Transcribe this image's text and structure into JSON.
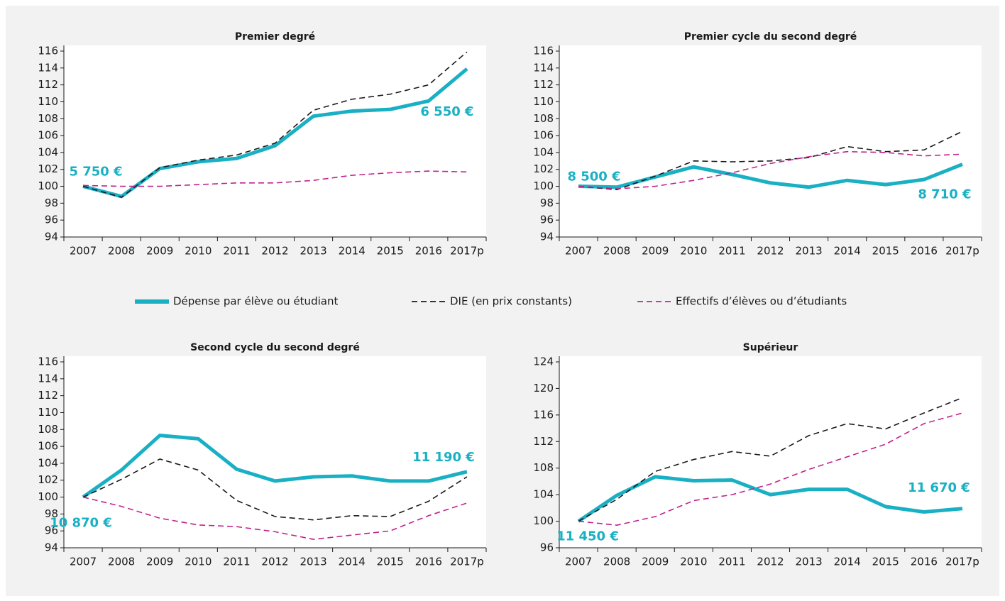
{
  "legend": [
    {
      "name": "Dépense par élève ou étudiant",
      "color": "#1ab0c4",
      "style": "solid"
    },
    {
      "name": "DIE (en prix constants)",
      "color": "#1a1a1a",
      "style": "dashed"
    },
    {
      "name": "Effectifs d’élèves ou d’étudiants",
      "color": "#c0228c",
      "style": "dashed"
    }
  ],
  "chart_data": [
    {
      "type": "line",
      "title": "Premier degré",
      "categories": [
        "2007",
        "2008",
        "2009",
        "2010",
        "2011",
        "2012",
        "2013",
        "2014",
        "2015",
        "2016",
        "2017p"
      ],
      "ylim": [
        94,
        116
      ],
      "yticks": [
        94,
        96,
        98,
        100,
        102,
        104,
        106,
        108,
        110,
        112,
        114,
        116
      ],
      "series": [
        {
          "values": [
            100,
            98.8,
            102.1,
            102.9,
            103.3,
            104.8,
            108.3,
            108.9,
            109.1,
            110.1,
            113.9
          ]
        },
        {
          "values": [
            100,
            98.7,
            102.2,
            103.1,
            103.7,
            105.1,
            109.0,
            110.3,
            110.9,
            112.0,
            115.9
          ]
        },
        {
          "values": [
            100.1,
            100.0,
            100.0,
            100.2,
            100.4,
            100.4,
            100.7,
            101.3,
            101.6,
            101.8,
            101.7
          ]
        }
      ],
      "annotations": [
        "5 750 €",
        "6 550 €"
      ]
    },
    {
      "type": "line",
      "title": "Premier cycle du second degré",
      "categories": [
        "2007",
        "2008",
        "2009",
        "2010",
        "2011",
        "2012",
        "2013",
        "2014",
        "2015",
        "2016",
        "2017p"
      ],
      "ylim": [
        94,
        116
      ],
      "yticks": [
        94,
        96,
        98,
        100,
        102,
        104,
        106,
        108,
        110,
        112,
        114,
        116
      ],
      "series": [
        {
          "values": [
            100,
            99.9,
            101.1,
            102.3,
            101.4,
            100.4,
            99.9,
            100.7,
            100.2,
            100.8,
            102.6
          ]
        },
        {
          "values": [
            100,
            99.6,
            101.2,
            103.0,
            102.9,
            103.0,
            103.4,
            104.7,
            104.1,
            104.3,
            106.5
          ]
        },
        {
          "values": [
            100,
            99.7,
            100.0,
            100.7,
            101.6,
            102.7,
            103.5,
            104.1,
            104.0,
            103.6,
            103.8
          ]
        }
      ],
      "annotations": [
        "8 500 €",
        "8 710 €"
      ]
    },
    {
      "type": "line",
      "title": "Second cycle du second degré",
      "categories": [
        "2007",
        "2008",
        "2009",
        "2010",
        "2011",
        "2012",
        "2013",
        "2014",
        "2015",
        "2016",
        "2017p"
      ],
      "ylim": [
        94,
        116
      ],
      "yticks": [
        94,
        96,
        98,
        100,
        102,
        104,
        106,
        108,
        110,
        112,
        114,
        116
      ],
      "series": [
        {
          "values": [
            100,
            103.2,
            107.3,
            106.9,
            103.3,
            101.9,
            102.4,
            102.5,
            101.9,
            101.9,
            103.0
          ]
        },
        {
          "values": [
            100,
            102.1,
            104.5,
            103.2,
            99.6,
            97.7,
            97.3,
            97.8,
            97.7,
            99.5,
            102.4
          ]
        },
        {
          "values": [
            100,
            98.9,
            97.5,
            96.7,
            96.5,
            95.9,
            95.0,
            95.5,
            96.0,
            97.8,
            99.3
          ]
        }
      ],
      "annotations": [
        "10 870 €",
        "11 190 €"
      ]
    },
    {
      "type": "line",
      "title": "Supérieur",
      "categories": [
        "2007",
        "2008",
        "2009",
        "2010",
        "2011",
        "2012",
        "2013",
        "2014",
        "2015",
        "2016",
        "2017p"
      ],
      "ylim": [
        96,
        124
      ],
      "yticks": [
        96,
        100,
        104,
        108,
        112,
        116,
        120,
        124
      ],
      "series": [
        {
          "values": [
            100,
            103.9,
            106.7,
            106.1,
            106.2,
            104.0,
            104.8,
            104.8,
            102.2,
            101.4,
            101.9
          ]
        },
        {
          "values": [
            100,
            103.3,
            107.5,
            109.3,
            110.5,
            109.8,
            112.9,
            114.7,
            113.9,
            116.3,
            118.6
          ]
        },
        {
          "values": [
            100,
            99.4,
            100.7,
            103.1,
            104.0,
            105.6,
            107.8,
            109.7,
            111.6,
            114.7,
            116.3
          ]
        }
      ],
      "annotations": [
        "11 450 €",
        "11 670 €"
      ]
    }
  ]
}
